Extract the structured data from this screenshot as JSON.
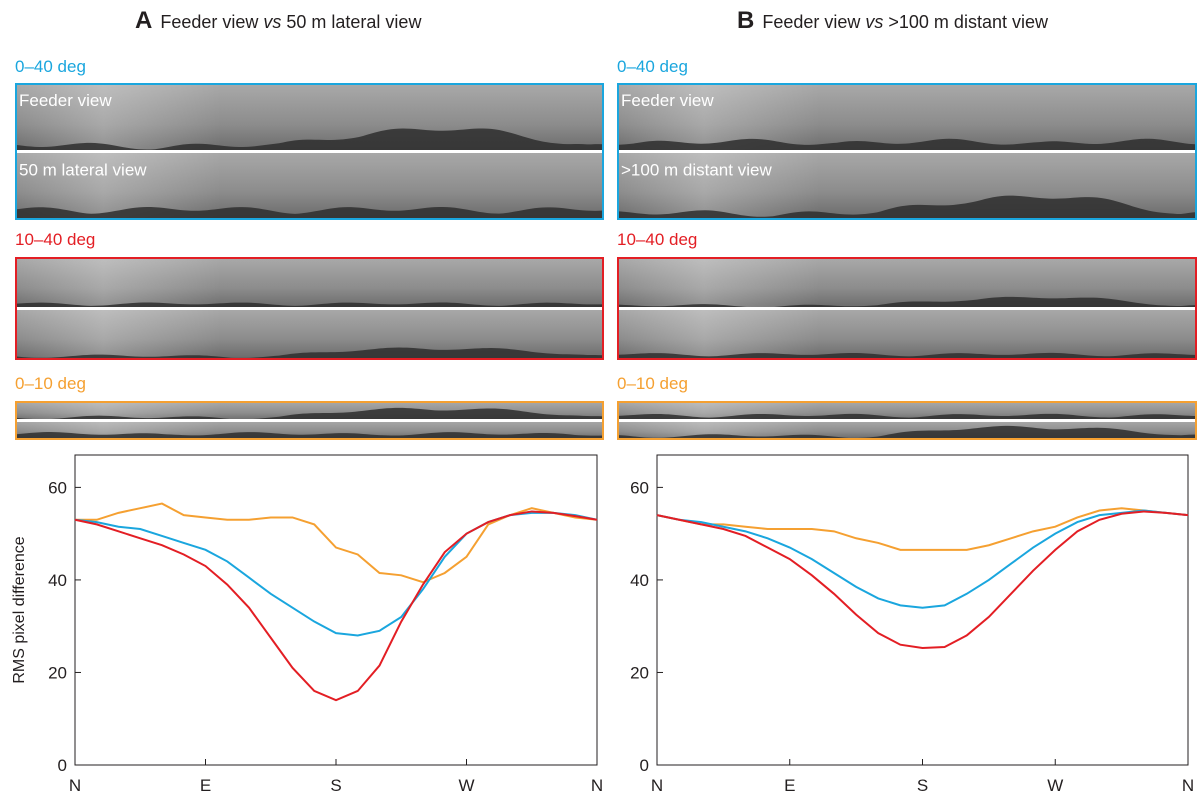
{
  "chart_data": [
    {
      "type": "line",
      "panel": "A",
      "title_parts": [
        "Feeder view ",
        "vs",
        " 50 m lateral view"
      ],
      "strips": [
        {
          "label": "0–40 deg",
          "color": "#1aa6de"
        },
        {
          "label": "10–40 deg",
          "color": "#e31e24"
        },
        {
          "label": "0–10 deg",
          "color": "#f5a031"
        }
      ],
      "view_labels": [
        "Feeder view",
        "50 m lateral view"
      ],
      "ylabel": "RMS pixel difference",
      "x": [
        0,
        15,
        30,
        45,
        60,
        75,
        90,
        105,
        120,
        135,
        150,
        165,
        180,
        195,
        210,
        225,
        240,
        255,
        270,
        285,
        300,
        315,
        330,
        345,
        360
      ],
      "xlim": [
        0,
        360
      ],
      "xticks": [
        {
          "value": 0,
          "label": "N"
        },
        {
          "value": 90,
          "label": "E"
        },
        {
          "value": 180,
          "label": "S"
        },
        {
          "value": 270,
          "label": "W"
        },
        {
          "value": 360,
          "label": "N"
        }
      ],
      "ylim": [
        0,
        67
      ],
      "yticks": [
        0,
        20,
        40,
        60
      ],
      "series": [
        {
          "color": "#f5a031",
          "values": [
            53,
            53,
            54.5,
            55.5,
            56.5,
            54,
            53.5,
            53,
            53,
            53.5,
            53.5,
            52,
            47,
            45.5,
            41.5,
            41,
            39.5,
            41.5,
            45,
            52,
            54,
            55.5,
            54.5,
            53.5,
            53
          ]
        },
        {
          "color": "#1aa6de",
          "values": [
            53,
            52.5,
            51.5,
            51,
            49.5,
            48,
            46.5,
            44,
            40.5,
            37,
            34,
            31,
            28.5,
            28,
            29,
            32,
            38,
            45,
            50,
            52.5,
            54,
            54.5,
            54.5,
            54,
            53
          ]
        },
        {
          "color": "#e31e24",
          "values": [
            53,
            52,
            50.5,
            49,
            47.5,
            45.5,
            43,
            39,
            34,
            27.5,
            21,
            16,
            14,
            16,
            21.5,
            31,
            39,
            46,
            50,
            52.5,
            54,
            54.8,
            54.5,
            53.8,
            53
          ]
        }
      ]
    },
    {
      "type": "line",
      "panel": "B",
      "title_parts": [
        "Feeder view ",
        "vs",
        " >100 m distant view"
      ],
      "strips": [
        {
          "label": "0–40 deg",
          "color": "#1aa6de"
        },
        {
          "label": "10–40 deg",
          "color": "#e31e24"
        },
        {
          "label": "0–10 deg",
          "color": "#f5a031"
        }
      ],
      "view_labels": [
        "Feeder view",
        ">100 m distant view"
      ],
      "x": [
        0,
        15,
        30,
        45,
        60,
        75,
        90,
        105,
        120,
        135,
        150,
        165,
        180,
        195,
        210,
        225,
        240,
        255,
        270,
        285,
        300,
        315,
        330,
        345,
        360
      ],
      "xlim": [
        0,
        360
      ],
      "xticks": [
        {
          "value": 0,
          "label": "N"
        },
        {
          "value": 90,
          "label": "E"
        },
        {
          "value": 180,
          "label": "S"
        },
        {
          "value": 270,
          "label": "W"
        },
        {
          "value": 360,
          "label": "N"
        }
      ],
      "ylim": [
        0,
        67
      ],
      "yticks": [
        0,
        20,
        40,
        60
      ],
      "series": [
        {
          "color": "#f5a031",
          "values": [
            54,
            53,
            52,
            52,
            51.5,
            51,
            51,
            51,
            50.5,
            49,
            48,
            46.5,
            46.5,
            46.5,
            46.5,
            47.5,
            49,
            50.5,
            51.5,
            53.5,
            55,
            55.5,
            55,
            54.5,
            54
          ]
        },
        {
          "color": "#1aa6de",
          "values": [
            54,
            53,
            52.5,
            51.5,
            50.5,
            49,
            47,
            44.5,
            41.5,
            38.5,
            36,
            34.5,
            34,
            34.5,
            37,
            40,
            43.5,
            47,
            50,
            52.5,
            54,
            54.5,
            55,
            54.5,
            54
          ]
        },
        {
          "color": "#e31e24",
          "values": [
            54,
            53,
            52,
            51,
            49.5,
            47,
            44.5,
            41,
            37,
            32.5,
            28.5,
            26,
            25.3,
            25.5,
            28,
            32,
            37,
            42,
            46.5,
            50.5,
            53,
            54.3,
            54.8,
            54.5,
            54
          ]
        }
      ]
    }
  ]
}
